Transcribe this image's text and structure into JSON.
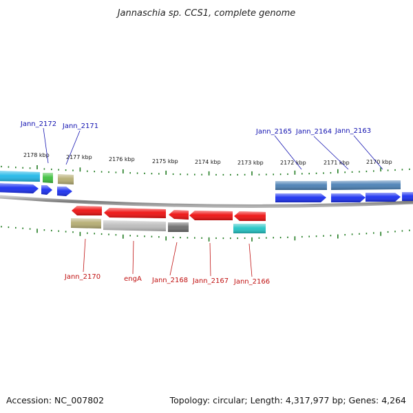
{
  "title": "Jannaschia sp. CCS1, complete genome",
  "accession": "Accession: NC_007802",
  "topology": "Topology: circular; Length: 4,317,977 bp; Genes: 4,264",
  "colors": {
    "forward_label": "#1010b0",
    "reverse_label": "#c01010",
    "tick": "#1e7a1e",
    "backbone": "#8c8c8c"
  },
  "scale_labels": [
    {
      "kbp": 2178,
      "label": "2178 kbp"
    },
    {
      "kbp": 2177,
      "label": "2177 kbp"
    },
    {
      "kbp": 2176,
      "label": "2176 kbp"
    },
    {
      "kbp": 2175,
      "label": "2175 kbp"
    },
    {
      "kbp": 2174,
      "label": "2174 kbp"
    },
    {
      "kbp": 2173,
      "label": "2173 kbp"
    },
    {
      "kbp": 2172,
      "label": "2172 kbp"
    },
    {
      "kbp": 2171,
      "label": "2171 kbp"
    },
    {
      "kbp": 2170,
      "label": "2170 kbp"
    }
  ],
  "forward_labels": [
    "Jann_2172",
    "Jann_2171",
    "Jann_2165",
    "Jann_2164",
    "Jann_2163"
  ],
  "reverse_labels": [
    "Jann_2170",
    "engA",
    "Jann_2168",
    "Jann_2167",
    "Jann_2166"
  ],
  "forward_genes": [
    {
      "color": "#1a2ff0",
      "direction": "forward"
    },
    {
      "color": "#1a2ff0",
      "direction": "forward"
    },
    {
      "color": "#1a2ff0",
      "direction": "forward"
    },
    {
      "color": "#1a2ff0",
      "direction": "forward"
    },
    {
      "color": "#1a2ff0",
      "direction": "forward"
    },
    {
      "color": "#1a2ff0",
      "direction": "forward"
    },
    {
      "color": "#1a2ff0",
      "direction": "forward"
    }
  ],
  "forward_features": [
    {
      "color": "#22b8e8"
    },
    {
      "color": "#3fc03f"
    },
    {
      "color": "#b5ad72"
    },
    {
      "color": "#4a80b5"
    },
    {
      "color": "#4a80b5"
    }
  ],
  "reverse_genes": [
    {
      "color": "#ee1010",
      "direction": "reverse"
    },
    {
      "color": "#ee1010",
      "direction": "reverse"
    },
    {
      "color": "#ee1010",
      "direction": "reverse"
    },
    {
      "color": "#ee1010",
      "direction": "reverse"
    },
    {
      "color": "#ee1010",
      "direction": "reverse"
    }
  ],
  "reverse_features": [
    {
      "color": "#b5ad72"
    },
    {
      "color": "#bdbdbd"
    },
    {
      "color": "#6e6e6e"
    },
    {
      "color": "#22c4c4"
    }
  ]
}
